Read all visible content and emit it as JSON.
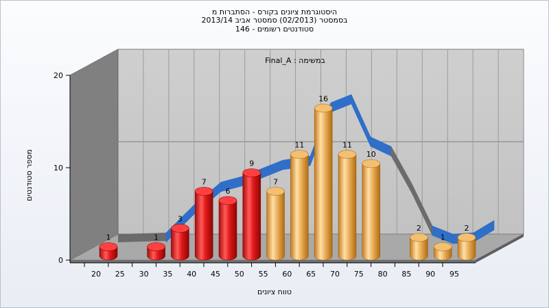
{
  "titles": {
    "line1": "היסטוגרמת ציונים בקורס - הסתברות מ",
    "line2": "בסמסטר  (02/2013)  סמסטר אביב 2013/14",
    "line3": "146 - סטודנטים רשומים"
  },
  "chart_data": {
    "type": "bar",
    "title": "Final_A : במשימה",
    "xlabel": "טווח ציונים",
    "ylabel": "מספר סטודנטים",
    "ylim": [
      0,
      20
    ],
    "yticks": [
      0,
      10,
      20
    ],
    "categories": [
      "20",
      "25",
      "30",
      "35",
      "40",
      "45",
      "50",
      "55",
      "60",
      "65",
      "70",
      "75",
      "80",
      "85",
      "90",
      "95"
    ],
    "series": [
      {
        "values": [
          1,
          0,
          1,
          3,
          7,
          6,
          9,
          7,
          11,
          16,
          11,
          10,
          0,
          2,
          1,
          2
        ]
      }
    ],
    "bar_colors": [
      "red",
      "red",
      "red",
      "red",
      "red",
      "red",
      "red",
      "orange",
      "orange",
      "orange",
      "orange",
      "orange",
      "orange",
      "orange",
      "orange",
      "orange"
    ],
    "colors": {
      "red": "#e02020",
      "orange": "#e8a23c",
      "curve_blue": "#2f6fc8",
      "curve_gray": "#6b6b6b"
    },
    "grid": true
  }
}
